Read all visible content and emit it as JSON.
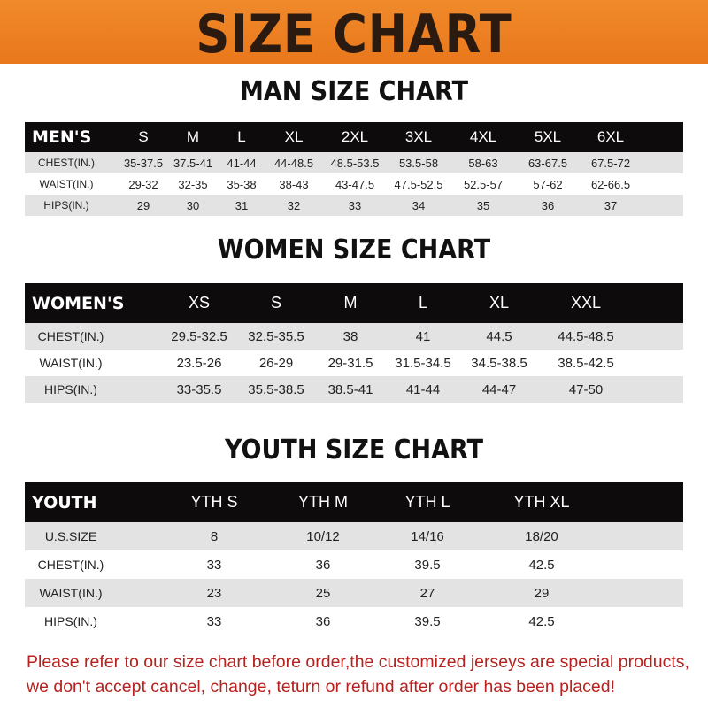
{
  "banner": {
    "title": "SIZE CHART"
  },
  "men": {
    "title": "MAN SIZE CHART",
    "header": [
      "MEN'S",
      "S",
      "M",
      "L",
      "XL",
      "2XL",
      "3XL",
      "4XL",
      "5XL",
      "6XL"
    ],
    "rows": [
      [
        "CHEST(IN.)",
        "35-37.5",
        "37.5-41",
        "41-44",
        "44-48.5",
        "48.5-53.5",
        "53.5-58",
        "58-63",
        "63-67.5",
        "67.5-72"
      ],
      [
        "WAIST(IN.)",
        "29-32",
        "32-35",
        "35-38",
        "38-43",
        "43-47.5",
        "47.5-52.5",
        "52.5-57",
        "57-62",
        "62-66.5"
      ],
      [
        "HIPS(IN.)",
        "29",
        "30",
        "31",
        "32",
        "33",
        "34",
        "35",
        "36",
        "37"
      ]
    ]
  },
  "women": {
    "title": "WOMEN SIZE CHART",
    "header": [
      "WOMEN'S",
      "XS",
      "S",
      "M",
      "L",
      "XL",
      "XXL"
    ],
    "rows": [
      [
        "CHEST(IN.)",
        "29.5-32.5",
        "32.5-35.5",
        "38",
        "41",
        "44.5",
        "44.5-48.5"
      ],
      [
        "WAIST(IN.)",
        "23.5-26",
        "26-29",
        "29-31.5",
        "31.5-34.5",
        "34.5-38.5",
        "38.5-42.5"
      ],
      [
        "HIPS(IN.)",
        "33-35.5",
        "35.5-38.5",
        "38.5-41",
        "41-44",
        "44-47",
        "47-50"
      ]
    ]
  },
  "youth": {
    "title": "YOUTH SIZE CHART",
    "header": [
      "YOUTH",
      "YTH S",
      "YTH M",
      "YTH L",
      "YTH XL"
    ],
    "rows": [
      [
        "U.S.SIZE",
        "8",
        "10/12",
        "14/16",
        "18/20"
      ],
      [
        "CHEST(IN.)",
        "33",
        "36",
        "39.5",
        "42.5"
      ],
      [
        "WAIST(IN.)",
        "23",
        "25",
        "27",
        "29"
      ],
      [
        "HIPS(IN.)",
        "33",
        "36",
        "39.5",
        "42.5"
      ]
    ]
  },
  "notice": {
    "line1": "Please refer to our size chart before order,the customized jerseys are special products,",
    "line2": "we don't accept cancel, change, teturn or refund after order has been placed!"
  },
  "colors": {
    "banner": "#ee8224",
    "header_row": "#0d0b0b",
    "notice": "#b5221f"
  }
}
